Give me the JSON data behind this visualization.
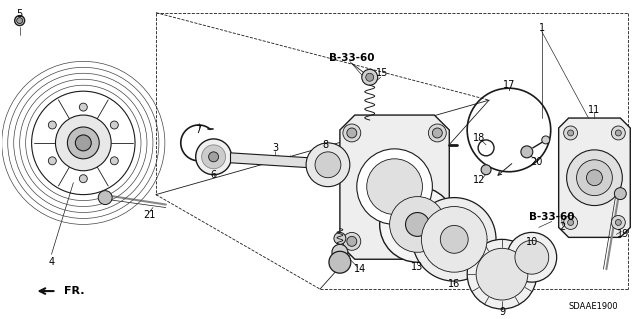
{
  "bg_color": "#ffffff",
  "fig_width": 6.4,
  "fig_height": 3.19,
  "dpi": 100,
  "diagram_code": "SDAAE1900",
  "fr_label": "FR.",
  "b3360_label": "B-33-60",
  "line_color": "#1a1a1a",
  "text_color": "#000000",
  "part_label_fontsize": 7,
  "diagram_label_fontsize": 6,
  "b3360_fontsize": 7.5
}
